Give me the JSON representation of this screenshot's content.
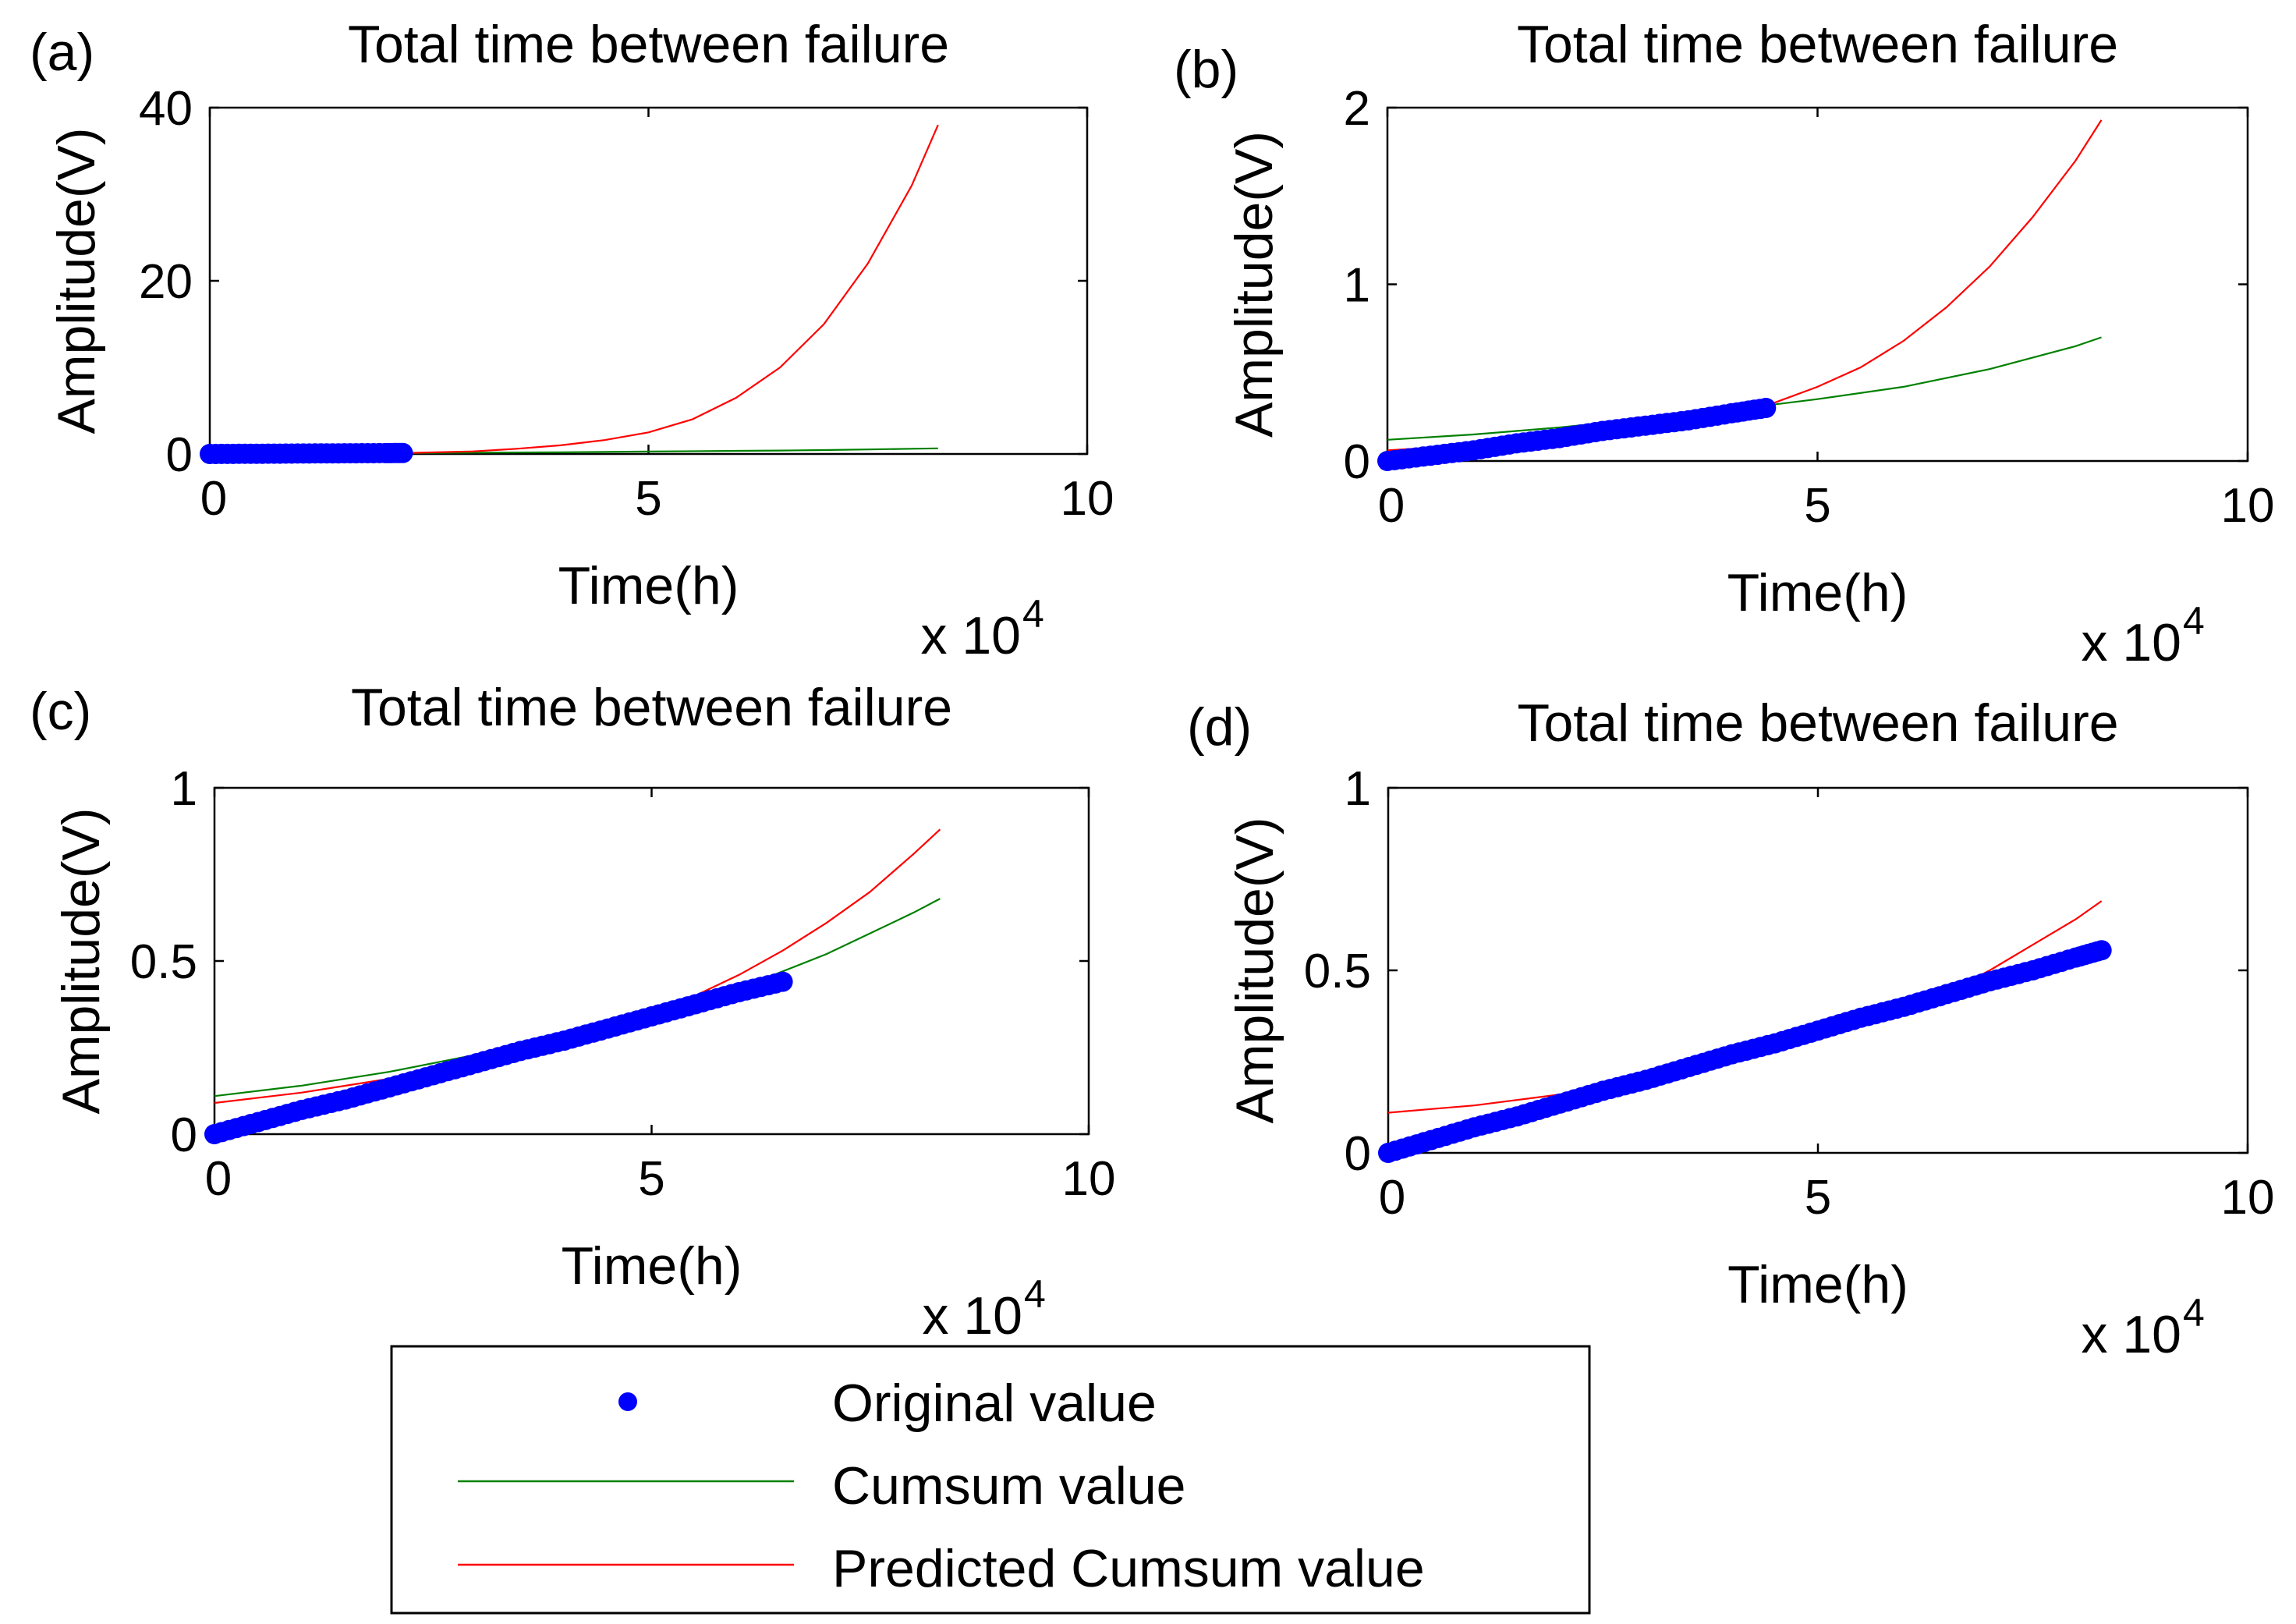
{
  "figure": {
    "legend": {
      "items": [
        {
          "label": "Original value",
          "marker": "dot",
          "color": "#0000ff"
        },
        {
          "label": "Cumsum value",
          "marker": "line",
          "color": "#008000"
        },
        {
          "label": "Predicted Cumsum value",
          "marker": "line",
          "color": "#ff0000"
        }
      ]
    },
    "colors": {
      "original": "#0000ff",
      "cumsum": "#008000",
      "predicted": "#ff0000"
    }
  },
  "chart_data": [
    {
      "panel": "(a)",
      "type": "line",
      "title": "Total time between failure",
      "xlabel": "Time(h)",
      "ylabel": "Amplitude(V)",
      "x_multiplier": "x 10",
      "x_exponent": "4",
      "xlim": [
        0,
        10
      ],
      "ylim": [
        0,
        40
      ],
      "xticks": [
        "0",
        "5",
        "10"
      ],
      "yticks": [
        "0",
        "20",
        "40"
      ],
      "xtick_values": [
        0,
        5,
        10
      ],
      "ytick_values": [
        0,
        20,
        40
      ],
      "series": [
        {
          "name": "Original value",
          "style": "dots",
          "x": [
            0,
            0.4,
            0.8,
            1.2,
            1.6,
            2.0,
            2.2
          ],
          "y": [
            0,
            0.02,
            0.04,
            0.06,
            0.08,
            0.1,
            0.11
          ]
        },
        {
          "name": "Cumsum value",
          "style": "line",
          "x": [
            2.2,
            3,
            4,
            5,
            6,
            6.5,
            7,
            7.5,
            8,
            8.3
          ],
          "y": [
            0.1,
            0.15,
            0.2,
            0.28,
            0.36,
            0.4,
            0.45,
            0.52,
            0.6,
            0.65
          ]
        },
        {
          "name": "Predicted Cumsum value",
          "style": "line",
          "x": [
            2.2,
            3,
            3.5,
            4,
            4.5,
            5,
            5.5,
            6,
            6.5,
            7,
            7.5,
            8,
            8.3
          ],
          "y": [
            0.1,
            0.3,
            0.6,
            1,
            1.6,
            2.5,
            4,
            6.5,
            10,
            15,
            22,
            31,
            38
          ]
        }
      ]
    },
    {
      "panel": "(b)",
      "type": "line",
      "title": "Total time between failure",
      "xlabel": "Time(h)",
      "ylabel": "Amplitude(V)",
      "x_multiplier": "x 10",
      "x_exponent": "4",
      "xlim": [
        0,
        10
      ],
      "ylim": [
        0,
        2
      ],
      "xticks": [
        "0",
        "5",
        "10"
      ],
      "yticks": [
        "0",
        "1",
        "2"
      ],
      "xtick_values": [
        0,
        5,
        10
      ],
      "ytick_values": [
        0,
        1,
        2
      ],
      "series": [
        {
          "name": "Original value",
          "style": "dots",
          "x": [
            0,
            0.5,
            1,
            1.5,
            2,
            2.5,
            3,
            3.5,
            4,
            4.4
          ],
          "y": [
            0,
            0.03,
            0.06,
            0.1,
            0.13,
            0.17,
            0.2,
            0.23,
            0.27,
            0.3
          ]
        },
        {
          "name": "Cumsum value",
          "style": "line",
          "x": [
            0,
            1,
            2,
            3,
            4,
            5,
            6,
            7,
            8,
            8.3
          ],
          "y": [
            0.12,
            0.15,
            0.19,
            0.24,
            0.29,
            0.35,
            0.42,
            0.52,
            0.65,
            0.7
          ]
        },
        {
          "name": "Predicted Cumsum value",
          "style": "line",
          "x": [
            0,
            1,
            2,
            3,
            4,
            4.5,
            5,
            5.5,
            6,
            6.5,
            7,
            7.5,
            8,
            8.3
          ],
          "y": [
            0.06,
            0.09,
            0.14,
            0.2,
            0.28,
            0.33,
            0.42,
            0.53,
            0.68,
            0.87,
            1.1,
            1.38,
            1.7,
            1.93
          ]
        }
      ]
    },
    {
      "panel": "(c)",
      "type": "line",
      "title": "Total time between failure",
      "xlabel": "Time(h)",
      "ylabel": "Amplitude(V)",
      "x_multiplier": "x 10",
      "x_exponent": "4",
      "xlim": [
        0,
        10
      ],
      "ylim": [
        0,
        1
      ],
      "xticks": [
        "0",
        "5",
        "10"
      ],
      "yticks": [
        "0",
        "0.5",
        "1"
      ],
      "xtick_values": [
        0,
        5,
        10
      ],
      "ytick_values": [
        0,
        0.5,
        1
      ],
      "series": [
        {
          "name": "Original value",
          "style": "dots",
          "x": [
            0,
            0.5,
            1,
            1.5,
            2,
            2.5,
            3,
            3.5,
            4,
            4.5,
            5,
            5.5,
            6,
            6.5
          ],
          "y": [
            0,
            0.035,
            0.07,
            0.1,
            0.135,
            0.17,
            0.205,
            0.24,
            0.27,
            0.305,
            0.34,
            0.375,
            0.41,
            0.44
          ]
        },
        {
          "name": "Cumsum value",
          "style": "line",
          "x": [
            0,
            1,
            2,
            3,
            4,
            5,
            5.5,
            6,
            6.5,
            7,
            7.5,
            8,
            8.3
          ],
          "y": [
            0.11,
            0.14,
            0.18,
            0.23,
            0.28,
            0.34,
            0.38,
            0.42,
            0.47,
            0.52,
            0.58,
            0.64,
            0.68
          ]
        },
        {
          "name": "Predicted Cumsum value",
          "style": "line",
          "x": [
            0,
            1,
            2,
            3,
            4,
            5,
            5.5,
            6,
            6.5,
            7,
            7.5,
            8,
            8.3
          ],
          "y": [
            0.09,
            0.12,
            0.16,
            0.21,
            0.27,
            0.35,
            0.4,
            0.46,
            0.53,
            0.61,
            0.7,
            0.81,
            0.88
          ]
        }
      ]
    },
    {
      "panel": "(d)",
      "type": "line",
      "title": "Total time between failure",
      "xlabel": "Time(h)",
      "ylabel": "Amplitude(V)",
      "x_multiplier": "x 10",
      "x_exponent": "4",
      "xlim": [
        0,
        10
      ],
      "ylim": [
        0,
        1
      ],
      "xticks": [
        "0",
        "5",
        "10"
      ],
      "yticks": [
        "0",
        "0.5",
        "1"
      ],
      "xtick_values": [
        0,
        5,
        10
      ],
      "ytick_values": [
        0,
        0.5,
        1
      ],
      "series": [
        {
          "name": "Original value",
          "style": "dots",
          "x": [
            0,
            0.5,
            1,
            1.5,
            2,
            2.5,
            3,
            3.5,
            4,
            4.5,
            5,
            5.5,
            6,
            6.5,
            7,
            7.5,
            8,
            8.3
          ],
          "y": [
            0,
            0.035,
            0.07,
            0.1,
            0.135,
            0.17,
            0.2,
            0.235,
            0.27,
            0.3,
            0.335,
            0.37,
            0.4,
            0.435,
            0.47,
            0.5,
            0.535,
            0.555
          ]
        },
        {
          "name": "Predicted Cumsum value",
          "style": "line",
          "x": [
            0,
            0.5,
            1,
            2,
            3,
            4,
            5,
            5.5,
            6,
            6.5,
            7,
            7.5,
            8,
            8.3
          ],
          "y": [
            0.11,
            0.12,
            0.13,
            0.16,
            0.2,
            0.25,
            0.31,
            0.35,
            0.39,
            0.44,
            0.5,
            0.57,
            0.64,
            0.69
          ]
        }
      ]
    }
  ]
}
